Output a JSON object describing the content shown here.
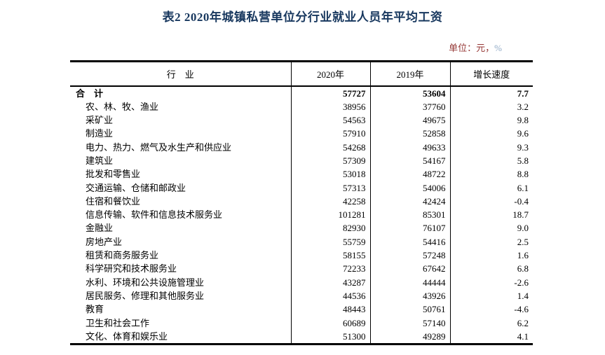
{
  "title": "表2 2020年城镇私营单位分行业就业人员年平均工资",
  "unit": {
    "label": "单位：元，",
    "percent": "%"
  },
  "colors": {
    "title_text": "#17375E",
    "unit_text": "#953735",
    "unit_percent": "#8FAAC6",
    "table_text": "#000000",
    "border": "#000000",
    "background": "#FFFFFF"
  },
  "table": {
    "headers": [
      "行　业",
      "2020年",
      "2019年",
      "增长速度"
    ],
    "rows": [
      {
        "industry": "合　计",
        "y2020": "57727",
        "y2019": "53604",
        "growth": "7.7",
        "emphasis": true
      },
      {
        "industry": "农、林、牧、渔业",
        "y2020": "38956",
        "y2019": "37760",
        "growth": "3.2"
      },
      {
        "industry": "采矿业",
        "y2020": "54563",
        "y2019": "49675",
        "growth": "9.8"
      },
      {
        "industry": "制造业",
        "y2020": "57910",
        "y2019": "52858",
        "growth": "9.6"
      },
      {
        "industry": "电力、热力、燃气及水生产和供应业",
        "y2020": "54268",
        "y2019": "49633",
        "growth": "9.3"
      },
      {
        "industry": "建筑业",
        "y2020": "57309",
        "y2019": "54167",
        "growth": "5.8"
      },
      {
        "industry": "批发和零售业",
        "y2020": "53018",
        "y2019": "48722",
        "growth": "8.8"
      },
      {
        "industry": "交通运输、仓储和邮政业",
        "y2020": "57313",
        "y2019": "54006",
        "growth": "6.1"
      },
      {
        "industry": "住宿和餐饮业",
        "y2020": "42258",
        "y2019": "42424",
        "growth": "-0.4"
      },
      {
        "industry": "信息传输、软件和信息技术服务业",
        "y2020": "101281",
        "y2019": "85301",
        "growth": "18.7"
      },
      {
        "industry": "金融业",
        "y2020": "82930",
        "y2019": "76107",
        "growth": "9.0"
      },
      {
        "industry": "房地产业",
        "y2020": "55759",
        "y2019": "54416",
        "growth": "2.5"
      },
      {
        "industry": "租赁和商务服务业",
        "y2020": "58155",
        "y2019": "57248",
        "growth": "1.6"
      },
      {
        "industry": "科学研究和技术服务业",
        "y2020": "72233",
        "y2019": "67642",
        "growth": "6.8"
      },
      {
        "industry": "水利、环境和公共设施管理业",
        "y2020": "43287",
        "y2019": "44444",
        "growth": "-2.6"
      },
      {
        "industry": "居民服务、修理和其他服务业",
        "y2020": "44536",
        "y2019": "43926",
        "growth": "1.4"
      },
      {
        "industry": "教育",
        "y2020": "48443",
        "y2019": "50761",
        "growth": "-4.6"
      },
      {
        "industry": "卫生和社会工作",
        "y2020": "60689",
        "y2019": "57140",
        "growth": "6.2"
      },
      {
        "industry": "文化、体育和娱乐业",
        "y2020": "51300",
        "y2019": "49289",
        "growth": "4.1"
      }
    ]
  }
}
